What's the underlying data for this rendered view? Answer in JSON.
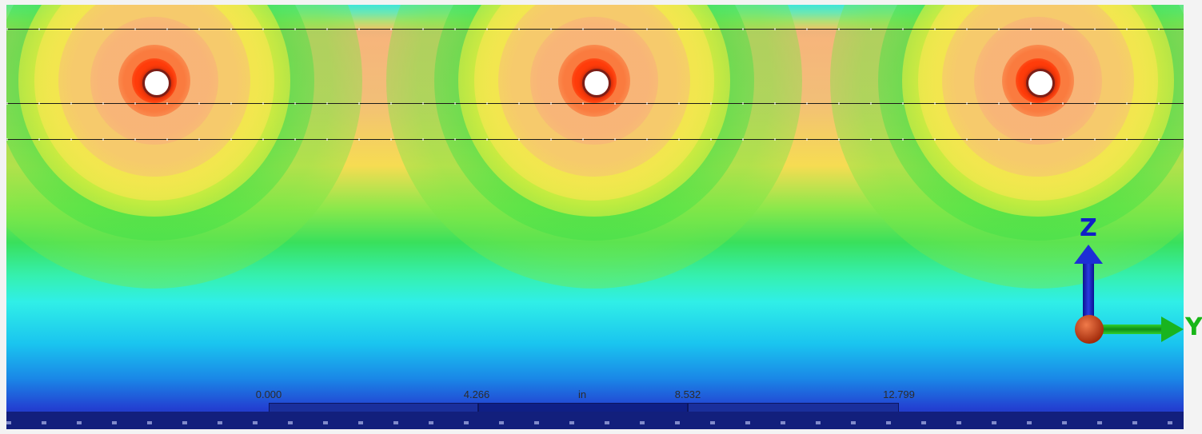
{
  "view": {
    "scale_bar": {
      "labels": [
        "0.000",
        "4.266",
        "in",
        "8.532",
        "12.799"
      ]
    },
    "axes": {
      "vertical_label": "Z",
      "horizontal_label": "Y"
    },
    "colors": {
      "hot": "#ff3a00",
      "warm": "#f6b57b",
      "mid": "#f6f23a",
      "green": "#3ce04a",
      "cyan": "#30efe7",
      "blue": "#1a6ee5",
      "deep_blue": "#1a2aa8",
      "z_axis": "#1020c8",
      "y_axis": "#17b617",
      "x_axis_dot": "#c0401a"
    }
  }
}
